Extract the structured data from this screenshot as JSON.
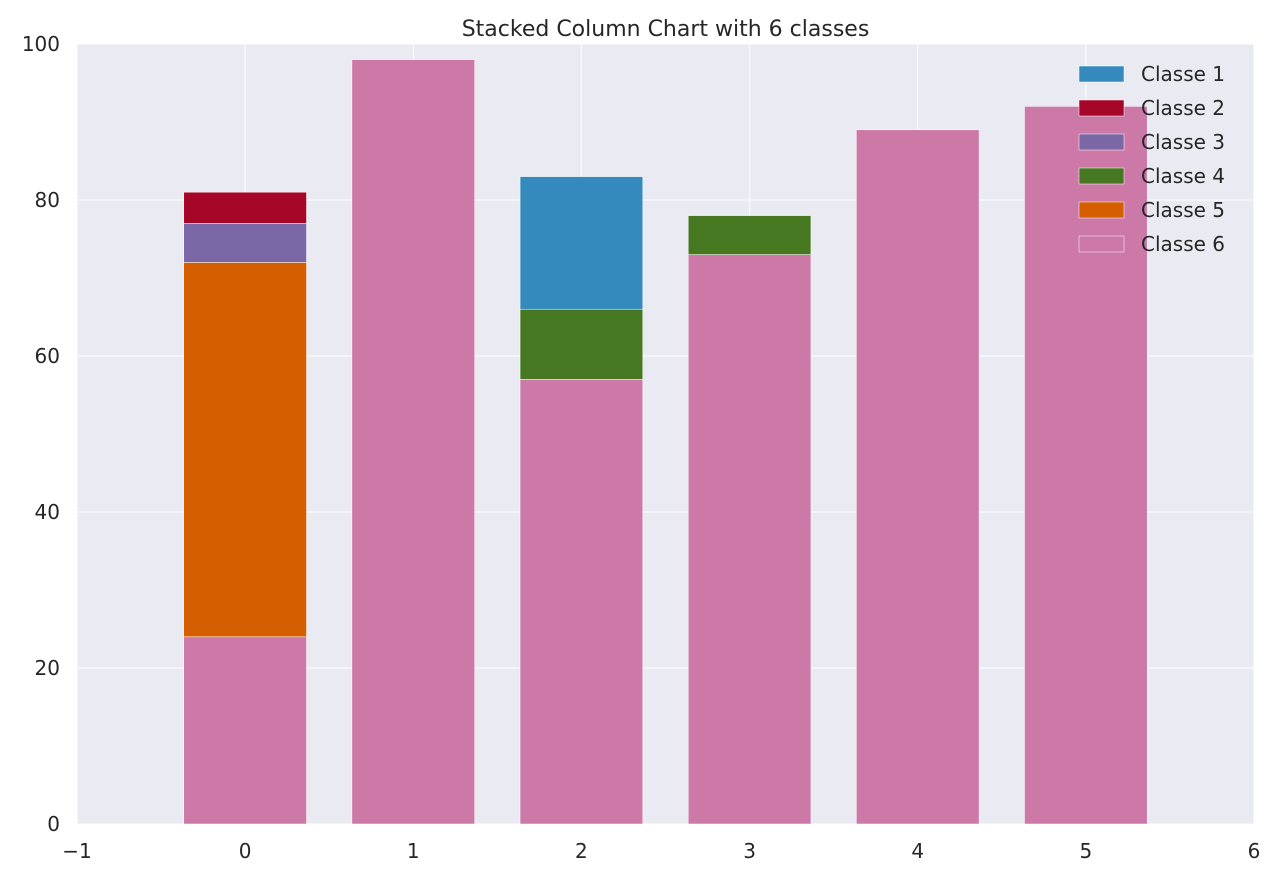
{
  "chart_data": {
    "type": "bar",
    "stacked": true,
    "title": "Stacked Column Chart with 6 classes",
    "xlabel": "",
    "ylabel": "",
    "x": [
      0,
      1,
      2,
      3,
      4,
      5
    ],
    "xlim": [
      -1,
      6
    ],
    "ylim": [
      0,
      100
    ],
    "x_ticks": [
      "−1",
      "0",
      "1",
      "2",
      "3",
      "4",
      "5",
      "6"
    ],
    "y_ticks": [
      "0",
      "20",
      "40",
      "60",
      "80",
      "100"
    ],
    "grid": true,
    "legend_position": "top-right",
    "background_color": "#EAEAF2",
    "series": [
      {
        "name": "Classe 1",
        "color": "#348ABD",
        "values": [
          0,
          0,
          17,
          0,
          0,
          0
        ]
      },
      {
        "name": "Classe 2",
        "color": "#A60628",
        "values": [
          4,
          0,
          0,
          0,
          0,
          0
        ]
      },
      {
        "name": "Classe 3",
        "color": "#7A68A6",
        "values": [
          5,
          0,
          0,
          0,
          0,
          0
        ]
      },
      {
        "name": "Classe 4",
        "color": "#467821",
        "values": [
          0,
          0,
          9,
          5,
          0,
          0
        ]
      },
      {
        "name": "Classe 5",
        "color": "#D55E00",
        "values": [
          48,
          0,
          0,
          0,
          0,
          0
        ]
      },
      {
        "name": "Classe 6",
        "color": "#CC79A7",
        "values": [
          24,
          98,
          57,
          73,
          89,
          92
        ]
      }
    ]
  }
}
